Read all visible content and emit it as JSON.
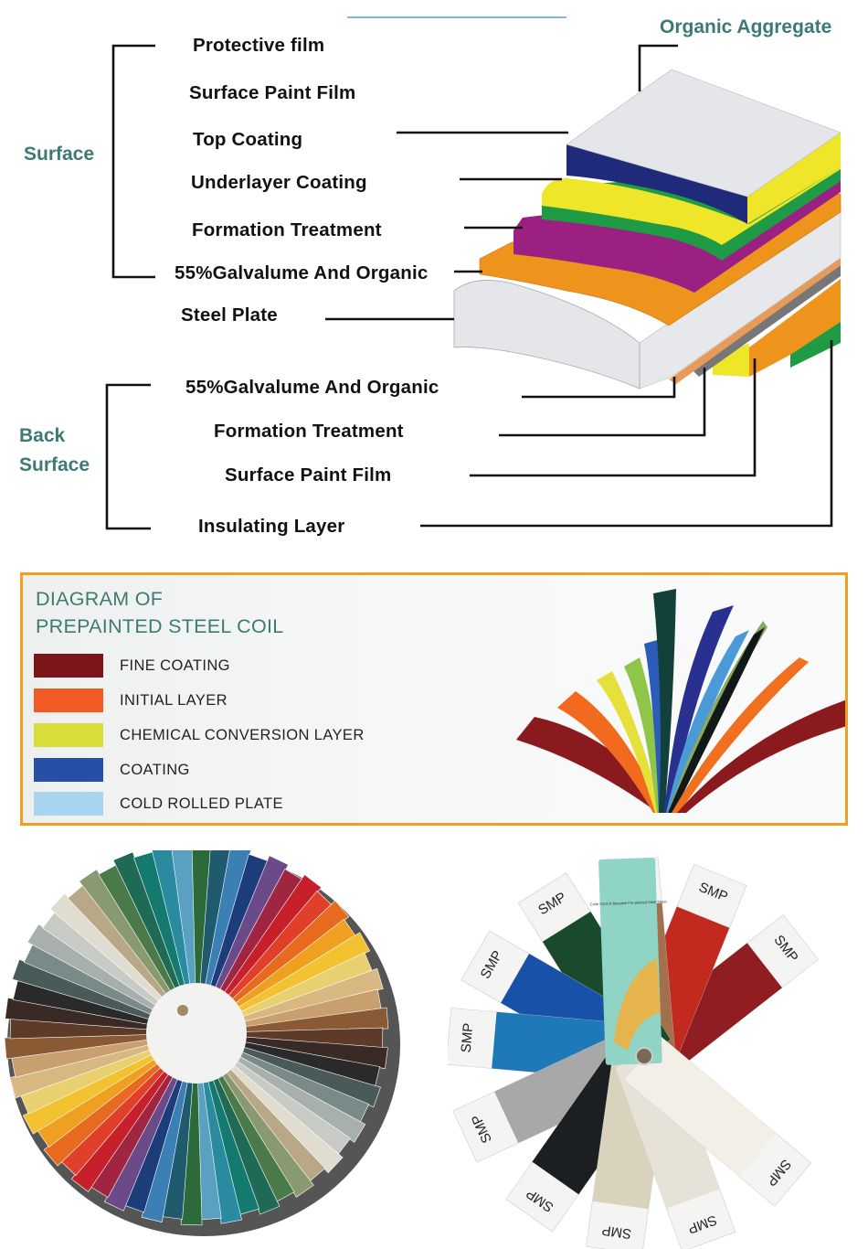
{
  "diagram": {
    "organic_aggregate": "Organic Aggregate",
    "surface_group": "Surface",
    "back_surface_group": [
      "Back",
      "Surface"
    ],
    "surface_layers": [
      "Protective film",
      "Surface Paint Film",
      "Top Coating",
      "Underlayer Coating",
      "Formation Treatment",
      "55%Galvalume And Organic",
      "Steel Plate"
    ],
    "back_layers": [
      "55%Galvalume And Organic",
      "Formation Treatment",
      "Surface Paint Film",
      "Insulating Layer"
    ],
    "layer_colors": {
      "top": "#e4e6ea",
      "blue": "#1f2a7a",
      "yellow": "#efe62a",
      "green": "#1f9a45",
      "purple": "#9c1f82",
      "orange": "#ee941c",
      "steel": "#e4e6ea"
    }
  },
  "legend": {
    "title_line1": "DIAGRAM OF",
    "title_line2": "PREPAINTED STEEL COIL",
    "border_color": "#f0a020",
    "items": [
      {
        "label": "FINE COATING",
        "color": "#7c1519"
      },
      {
        "label": "INITIAL LAYER",
        "color": "#f15a24"
      },
      {
        "label": "CHEMICAL CONVERSION LAYER",
        "color": "#d9dd3b"
      },
      {
        "label": "COATING",
        "color": "#2650a6"
      },
      {
        "label": "COLD ROLLED PLATE",
        "color": "#a8d4f0"
      }
    ]
  },
  "photos": {
    "ral_fan_colors": [
      "#2d6a3a",
      "#1f5a6e",
      "#3b7fb5",
      "#1d3c7a",
      "#6b4a8a",
      "#a02540",
      "#c8202a",
      "#e0402a",
      "#e86a1e",
      "#f0a020",
      "#f2c230",
      "#e8d070",
      "#d8b880",
      "#c8a070",
      "#8a5a35",
      "#5e3a28",
      "#3a2a25",
      "#2a2a2a",
      "#4a5a5a",
      "#7a8a88",
      "#a8b0ad",
      "#c8cac5",
      "#e0ddd0",
      "#b8a888",
      "#8a9a70",
      "#4a7a4a",
      "#1e6a55",
      "#147a70",
      "#2a8aa0",
      "#5aa0c0"
    ],
    "smp_label": "SMP",
    "smp_cover_text": "Color Card of Baosteel Pre-painted Steel Sheet",
    "smp_colors": [
      "#8f1d22",
      "#c2291f",
      "#a3704e",
      "#1a4a2c",
      "#1752a8",
      "#1f78b8",
      "#a8a8a8",
      "#1c1f22",
      "#d9d2bd",
      "#e6e2d7",
      "#f3efe6"
    ]
  }
}
